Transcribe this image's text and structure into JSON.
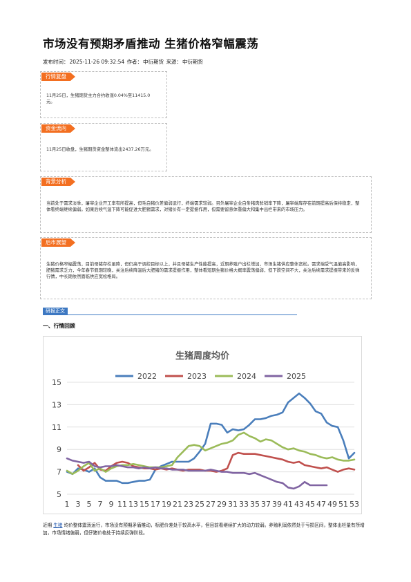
{
  "article": {
    "title": "市场没有预期矛盾推动 生猪价格窄幅震荡",
    "meta_label": "发布时间：",
    "datetime": "2025-11-26 09:32:54",
    "author_label": "作者：",
    "author": "中衍期货",
    "source_label": "来源：",
    "source": "中衍期货"
  },
  "sections": {
    "review": {
      "tag": "行情复盘",
      "text": "11月25日，生猪期货主力合约收涨0.04%至11415.0元。"
    },
    "funds": {
      "tag": "资金流向",
      "text": "11月25日收盘，生猪期货资金整体流出2437.26万元。"
    },
    "background": {
      "tag": "背景分析",
      "text": "当前处于需求淡季，屠宰企业开工率有所提高，但毛白猪价差偏弱运行，终端需求较弱。另外屠宰企业白条猪肉鲜销率下降，屠宰端库存在前期提高后保持稳定，整体看终端继续偏弱。如果后续气温下降可能促进大肥猪需求，对猪价有一定提振作用，但需要留意体重偏大和集中出栏带来的市场压力。"
    },
    "outlook": {
      "tag": "后市展望",
      "text": "生猪价格窄幅震荡，目前母猪存栏虽降，但仍高于调控目标以上，并且母猪生产性能提高，近期养殖户出栏增加，市场生猪供应整体宽松。需求端受气温偏高影响，肥猪需求乏力，今年春节假期较晚，关注后续降温后大肥猪的需求提振作用，整体看短期生猪价格大概率震荡偏弱，但下跌空间不大，关注后续需求提振带来的反弹行情，中长期依然面临供应宽松格局。"
    }
  },
  "report": {
    "tag": "研报正文",
    "heading": "一、行情回顾"
  },
  "chart_data": {
    "type": "line",
    "title": "生猪周度均价",
    "xlabel": "",
    "ylabel": "",
    "ylim": [
      5,
      15
    ],
    "yticks": [
      5,
      7,
      9,
      11,
      13,
      15
    ],
    "xticks": [
      1,
      3,
      5,
      7,
      9,
      11,
      13,
      15,
      17,
      19,
      21,
      23,
      25,
      27,
      29,
      31,
      33,
      35,
      37,
      39,
      41,
      43,
      45,
      47,
      49,
      51,
      53
    ],
    "legend_position": "top",
    "grid": "horizontal",
    "series": [
      {
        "name": "2022",
        "color": "#4a7ebb",
        "x": [
          1,
          2,
          3,
          4,
          5,
          6,
          7,
          8,
          9,
          10,
          11,
          12,
          13,
          14,
          15,
          16,
          17,
          18,
          19,
          20,
          21,
          22,
          23,
          24,
          25,
          26,
          27,
          28,
          29,
          30,
          31,
          32,
          33,
          34,
          35,
          36,
          37,
          38,
          39,
          40,
          41,
          42,
          43,
          44,
          45,
          46,
          47,
          48,
          49,
          50,
          51,
          52,
          53
        ],
        "y": [
          7.0,
          6.8,
          7.3,
          7.2,
          7.0,
          7.3,
          6.5,
          6.2,
          6.2,
          6.2,
          6.0,
          6.0,
          6.1,
          6.2,
          6.2,
          6.3,
          7.2,
          7.5,
          7.7,
          7.9,
          7.9,
          7.9,
          7.9,
          8.2,
          8.8,
          9.5,
          11.3,
          11.3,
          11.2,
          10.5,
          10.8,
          10.7,
          10.8,
          11.2,
          11.7,
          11.7,
          11.8,
          12.0,
          12.1,
          12.3,
          13.2,
          13.6,
          14.0,
          13.6,
          13.1,
          12.4,
          12.2,
          11.4,
          11.1,
          11.0,
          9.8,
          8.2,
          8.7
        ]
      },
      {
        "name": "2023",
        "color": "#c0504d",
        "x": [
          3,
          4,
          5,
          6,
          7,
          8,
          9,
          10,
          11,
          12,
          13,
          14,
          15,
          16,
          17,
          18,
          19,
          20,
          21,
          22,
          23,
          24,
          25,
          26,
          27,
          28,
          29,
          30,
          31,
          32,
          33,
          34,
          35,
          36,
          37,
          38,
          39,
          40,
          41,
          42,
          43,
          44,
          45,
          46,
          47,
          48,
          49,
          50,
          51,
          52,
          53
        ],
        "y": [
          7.6,
          7.1,
          7.4,
          7.8,
          7.2,
          7.1,
          7.5,
          7.8,
          7.9,
          7.8,
          7.5,
          7.4,
          7.3,
          7.3,
          7.2,
          7.3,
          7.2,
          7.3,
          7.2,
          7.1,
          7.2,
          7.2,
          7.2,
          7.1,
          7.1,
          7.0,
          7.1,
          7.3,
          8.5,
          8.7,
          8.6,
          8.6,
          8.6,
          8.5,
          8.4,
          8.3,
          8.2,
          8.1,
          7.9,
          7.8,
          7.9,
          7.6,
          7.5,
          7.4,
          7.3,
          7.4,
          7.2,
          7.0,
          7.2,
          7.3,
          7.2
        ]
      },
      {
        "name": "2024",
        "color": "#9bbb59",
        "x": [
          1,
          2,
          3,
          4,
          5,
          6,
          7,
          8,
          9,
          10,
          11,
          12,
          13,
          14,
          15,
          16,
          17,
          18,
          19,
          20,
          21,
          22,
          23,
          24,
          25,
          26,
          27,
          28,
          29,
          30,
          31,
          32,
          33,
          34,
          35,
          36,
          37,
          38,
          39,
          40,
          41,
          42,
          43,
          44,
          45,
          46,
          47,
          48,
          49,
          50,
          51,
          52,
          53
        ],
        "y": [
          7.1,
          6.8,
          7.1,
          7.5,
          7.8,
          7.1,
          7.3,
          7.0,
          7.3,
          7.5,
          7.6,
          7.6,
          7.7,
          7.6,
          7.5,
          7.4,
          7.4,
          7.4,
          7.5,
          7.6,
          8.3,
          8.8,
          9.3,
          9.4,
          9.3,
          8.9,
          9.1,
          9.3,
          9.5,
          9.6,
          9.8,
          10.3,
          10.5,
          10.2,
          10.0,
          9.7,
          9.9,
          9.8,
          9.5,
          9.2,
          9.0,
          9.1,
          8.9,
          8.8,
          8.6,
          8.5,
          8.3,
          8.2,
          8.3,
          8.1,
          8.0,
          8.0,
          8.1
        ]
      },
      {
        "name": "2025",
        "color": "#8064a2",
        "x": [
          1,
          2,
          3,
          4,
          5,
          6,
          7,
          8,
          9,
          10,
          11,
          12,
          13,
          14,
          15,
          16,
          17,
          18,
          19,
          20,
          21,
          22,
          23,
          24,
          25,
          26,
          27,
          28,
          29,
          30,
          31,
          32,
          33,
          34,
          35,
          36,
          37,
          38,
          39,
          40,
          41,
          42,
          43,
          44,
          45,
          46,
          47,
          48
        ],
        "y": [
          8.2,
          8.0,
          7.9,
          7.8,
          7.9,
          7.5,
          7.4,
          7.5,
          7.5,
          7.6,
          7.5,
          7.4,
          7.4,
          7.3,
          7.4,
          7.3,
          7.4,
          7.3,
          7.3,
          7.2,
          7.2,
          7.2,
          7.1,
          7.1,
          7.1,
          7.1,
          7.2,
          7.1,
          7.0,
          7.0,
          6.9,
          6.9,
          6.9,
          6.8,
          6.9,
          6.7,
          6.5,
          6.3,
          6.1,
          6.0,
          5.6,
          5.5,
          5.7,
          6.1,
          5.8,
          5.8,
          5.8,
          5.8
        ]
      }
    ]
  },
  "footer": {
    "prefix": "近期 ",
    "link": "生猪",
    "rest": " 均价整体震荡运行，市场没有预期矛盾推动，标肥价差处于较高水平，但目前看继续扩大的动力较弱。养殖利润依然处于亏损区间，整体出栏量有所增加，市场情绪偏弱，但仔猪价格处于持续反弹阶段。"
  }
}
